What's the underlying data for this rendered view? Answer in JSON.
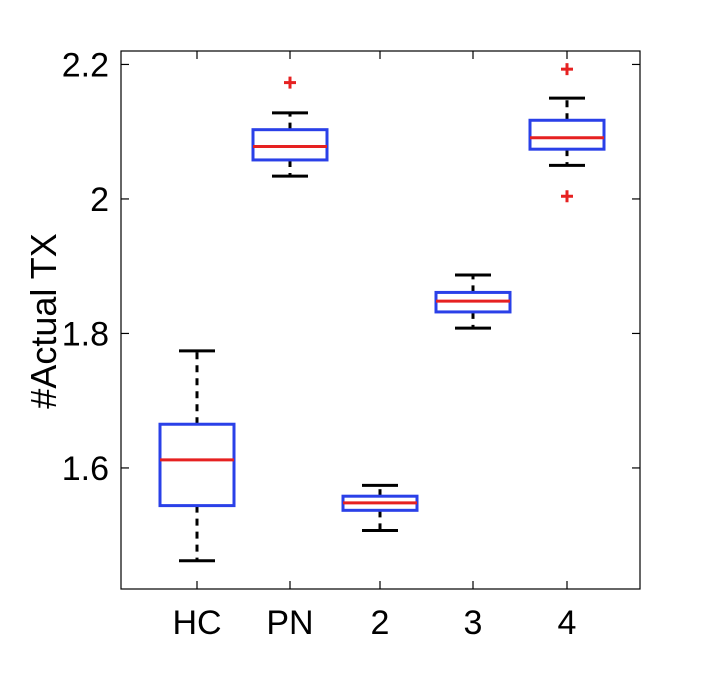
{
  "chart_data": {
    "type": "box",
    "title": "",
    "xlabel": "",
    "ylabel": "#Actual TX",
    "ylim": [
      1.42,
      2.22
    ],
    "yticks": [
      1.6,
      1.8,
      2,
      2.2
    ],
    "ytick_labels": [
      "1.6",
      "1.8",
      "2",
      "2.2"
    ],
    "categories": [
      "HC",
      "PN",
      "2",
      "3",
      "4"
    ],
    "boxes": [
      {
        "category": "HC",
        "whisker_low": 1.462,
        "q1": 1.544,
        "median": 1.612,
        "q3": 1.665,
        "whisker_high": 1.774,
        "outliers": []
      },
      {
        "category": "PN",
        "whisker_low": 2.034,
        "q1": 2.058,
        "median": 2.078,
        "q3": 2.103,
        "whisker_high": 2.128,
        "outliers": [
          2.173
        ]
      },
      {
        "category": "2",
        "whisker_low": 1.507,
        "q1": 1.537,
        "median": 1.548,
        "q3": 1.558,
        "whisker_high": 1.574,
        "outliers": []
      },
      {
        "category": "3",
        "whisker_low": 1.808,
        "q1": 1.832,
        "median": 1.848,
        "q3": 1.861,
        "whisker_high": 1.887,
        "outliers": []
      },
      {
        "category": "4",
        "whisker_low": 2.05,
        "q1": 2.074,
        "median": 2.091,
        "q3": 2.117,
        "whisker_high": 2.15,
        "outliers": [
          2.193,
          2.004
        ]
      }
    ],
    "grid": false,
    "colors": {
      "box": "#2a40e8",
      "median": "#e62121",
      "whisker": "#000000",
      "outlier": "#e62121",
      "axes": "#000000"
    }
  }
}
